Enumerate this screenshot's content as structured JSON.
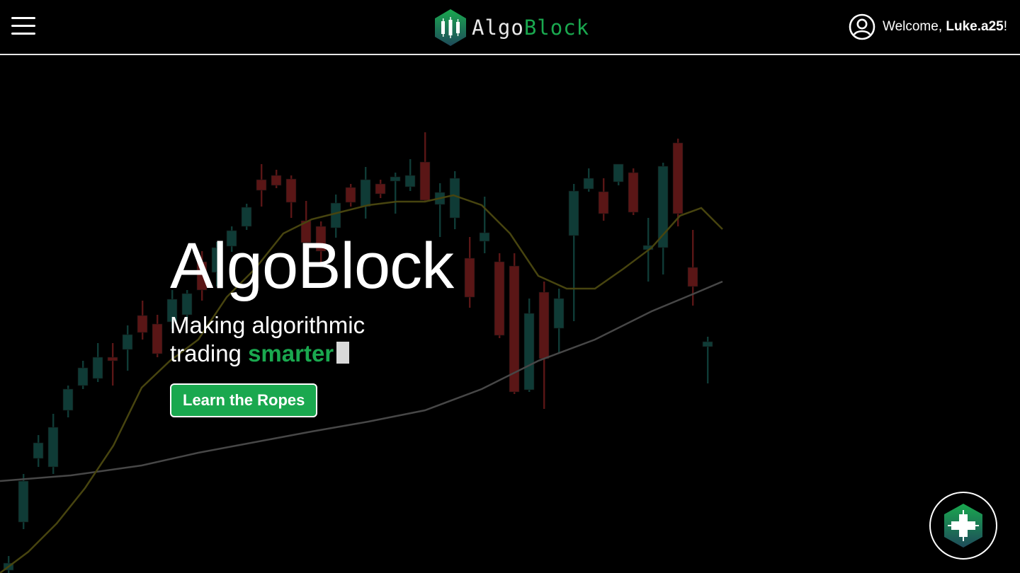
{
  "header": {
    "logo_text_part1": "Algo",
    "logo_text_part2": "Block",
    "welcome_prefix": "Welcome, ",
    "username": "Luke.a25",
    "welcome_suffix": "!"
  },
  "hero": {
    "title": "AlgoBlock",
    "subtitle_line1": "Making algorithmic",
    "subtitle_line2_prefix": "trading ",
    "subtitle_highlight": "smarter",
    "cta_label": "Learn the Ropes"
  },
  "colors": {
    "accent": "#1aa84f",
    "background": "#000000",
    "candle_up": "#0f3b36",
    "candle_down": "#5a1616",
    "ma_short": "#4d4a14",
    "ma_long": "#4a4a4a"
  },
  "icons": {
    "menu": "hamburger-menu-icon",
    "logo": "candlestick-hexagon-logo-icon",
    "user": "user-circle-icon",
    "fab": "plus-hexagon-icon"
  }
}
